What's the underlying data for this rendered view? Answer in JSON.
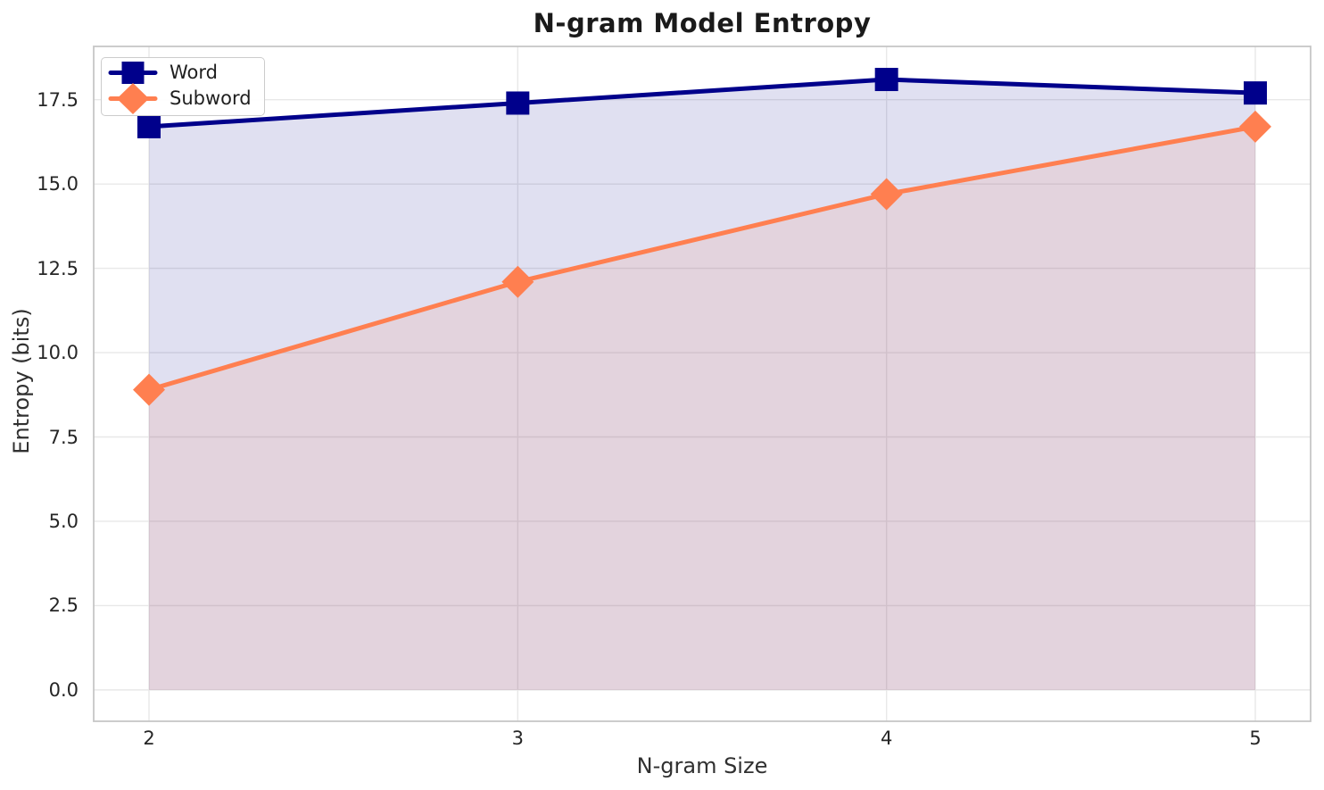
{
  "chart_data": {
    "type": "line",
    "title": "N-gram Model Entropy",
    "xlabel": "N-gram Size",
    "ylabel": "Entropy (bits)",
    "x": [
      2,
      3,
      4,
      5
    ],
    "series": [
      {
        "name": "Word",
        "color": "#00008B",
        "marker": "square",
        "values": [
          16.7,
          17.4,
          18.1,
          17.7
        ],
        "fill_to_zero": true
      },
      {
        "name": "Subword",
        "color": "#FF7F50",
        "marker": "diamond",
        "values": [
          8.9,
          12.1,
          14.7,
          16.7
        ],
        "fill_to_zero": true
      }
    ],
    "xlim": [
      1.85,
      5.15
    ],
    "ylim": [
      -0.93,
      19.08
    ],
    "xticks": [
      2,
      3,
      4,
      5
    ],
    "xtick_labels": [
      "2",
      "3",
      "4",
      "5"
    ],
    "yticks": [
      0.0,
      2.5,
      5.0,
      7.5,
      10.0,
      12.5,
      15.0,
      17.5
    ],
    "ytick_labels": [
      "0.0",
      "2.5",
      "5.0",
      "7.5",
      "10.0",
      "12.5",
      "15.0",
      "17.5"
    ],
    "grid": true,
    "legend_position": "upper left",
    "fill_opacity": 0.12,
    "line_width": 5,
    "colors": {
      "grid": "#e8e8e8",
      "spine": "#c6c6c6",
      "text": "#262626",
      "title": "#1a1a1a",
      "background": "#ffffff"
    }
  }
}
